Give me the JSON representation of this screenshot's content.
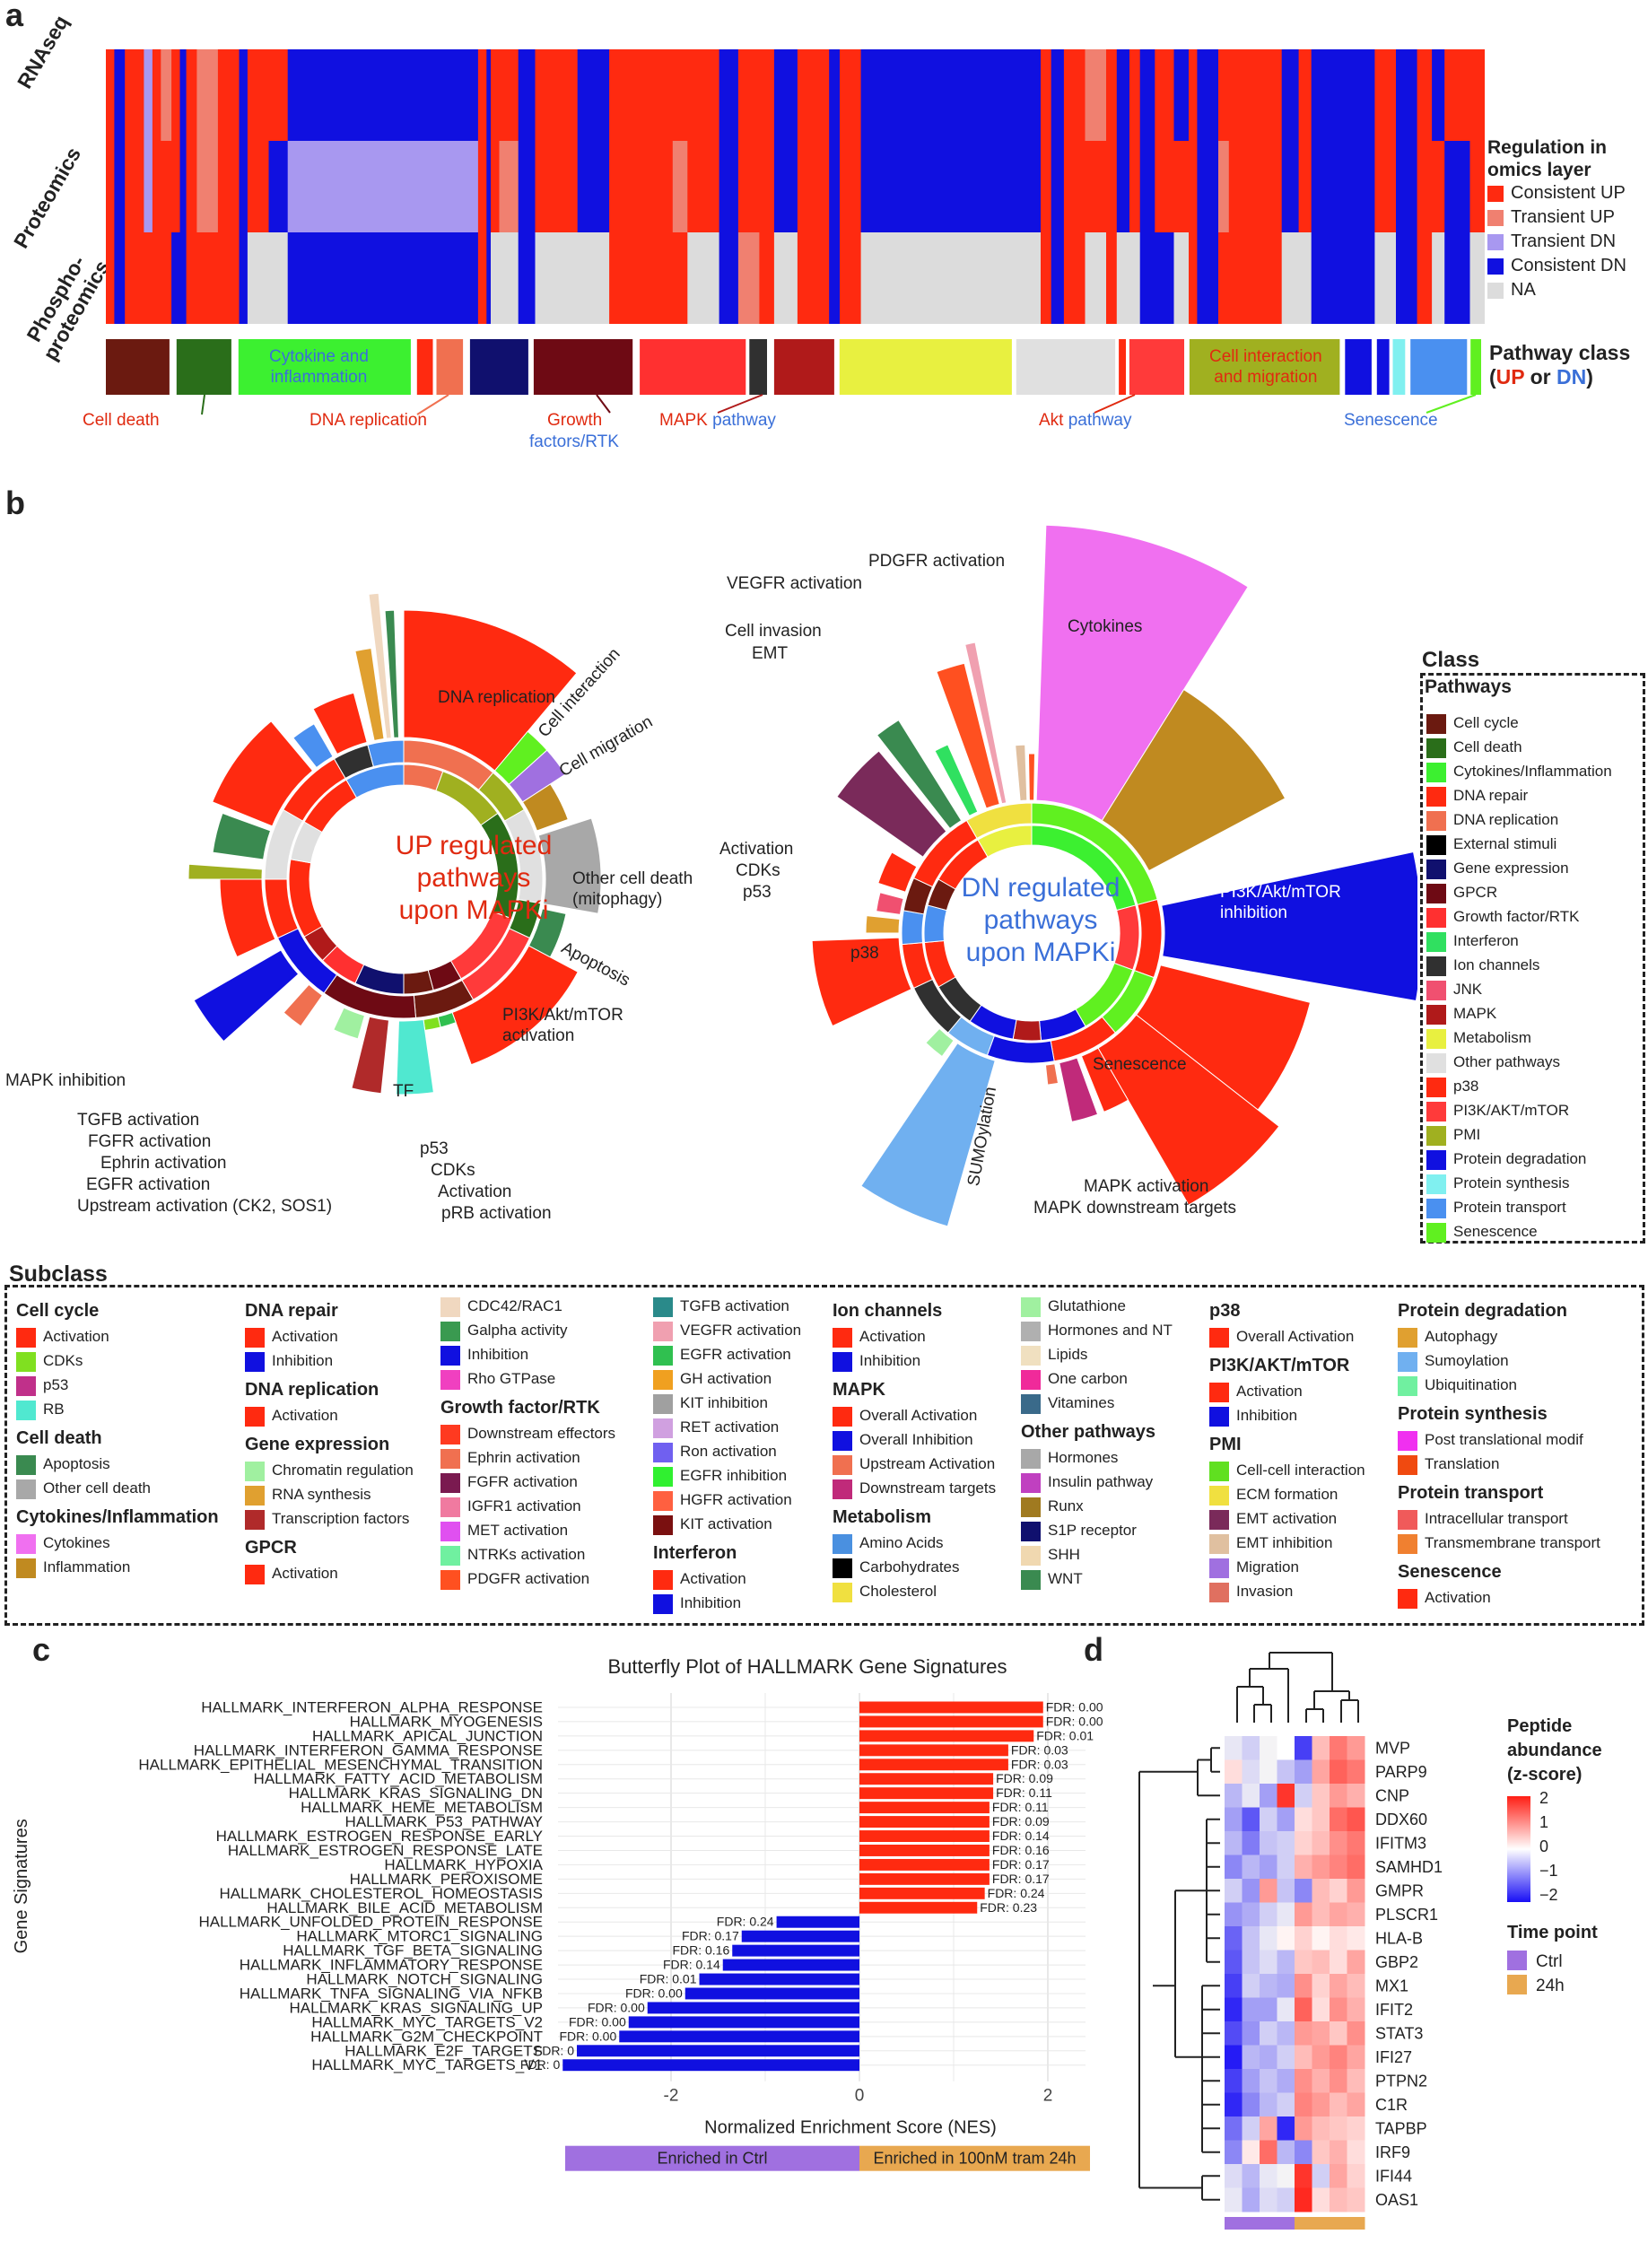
{
  "panel_a": {
    "letter": "a",
    "row_labels": [
      "RNAseq",
      "Proteomics",
      "Phospho-\nproteomics"
    ],
    "regulation_legend": {
      "title": "Regulation in\nomics layer",
      "items": [
        {
          "label": "Consistent UP",
          "color": "#ff2a10"
        },
        {
          "label": "Transient UP",
          "color": "#f08070"
        },
        {
          "label": "Transient DN",
          "color": "#a898f0"
        },
        {
          "label": "Consistent DN",
          "color": "#1010e0"
        },
        {
          "label": "NA",
          "color": "#dcdcdc"
        }
      ]
    },
    "pathway_class_title": "Pathway class",
    "pathway_class_sub": [
      "(",
      "UP",
      " or ",
      "DN",
      ")"
    ],
    "class_labels_inside": [
      {
        "text": "Cytokine and\ninflammation",
        "color": "#3a6fd8"
      },
      {
        "text": "Cell interaction\nand migration",
        "color": "#e02a10"
      }
    ],
    "class_labels_below": [
      {
        "parts": [
          {
            "t": "Cell death",
            "c": "#e02a10"
          }
        ]
      },
      {
        "parts": [
          {
            "t": "DNA replication",
            "c": "#e02a10"
          }
        ]
      },
      {
        "parts": [
          {
            "t": "Growth",
            "c": "#e02a10"
          }
        ]
      },
      {
        "parts": [
          {
            "t": "factors/RTK",
            "c": "#3a6fd8"
          }
        ]
      },
      {
        "parts": [
          {
            "t": "MAPK ",
            "c": "#e02a10"
          },
          {
            "t": "pathway",
            "c": "#3a6fd8"
          }
        ]
      },
      {
        "parts": [
          {
            "t": "Akt ",
            "c": "#e02a10"
          },
          {
            "t": "pathway",
            "c": "#3a6fd8"
          }
        ]
      },
      {
        "parts": [
          {
            "t": "Senescence",
            "c": "#3a6fd8"
          }
        ]
      }
    ]
  },
  "panel_b": {
    "letter": "b",
    "up_title": "UP regulated\npathways\nupon MAPKi",
    "dn_title": "DN regulated\npathways\nupon MAPKi",
    "up_labels": [
      "DNA replication",
      "Cell interaction",
      "Cell migration",
      "Other cell death\n(mitophagy)",
      "Apoptosis",
      "PI3K/Akt/mTOR\nactivation",
      "TF",
      "MAPK inhibition",
      "TGFB activation",
      "FGFR activation",
      "Ephrin activation",
      "EGFR activation",
      "Upstream activation (CK2, SOS1)",
      "p53",
      "CDKs",
      "Activation",
      "pRB activation"
    ],
    "dn_labels": [
      "Cytokines",
      "PDGFR activation",
      "VEGFR activation",
      "Cell invasion",
      "EMT",
      "Activation",
      "CDKs",
      "p53",
      "p38",
      "PI3K/Akt/mTOR\ninhibition",
      "Senescence",
      "SUMOylation",
      "MAPK activation",
      "MAPK downstream targets"
    ],
    "class_legend": {
      "title": "Class",
      "subtitle": "Pathways",
      "items": [
        {
          "label": "Cell cycle",
          "color": "#6b1a10"
        },
        {
          "label": "Cell death",
          "color": "#2a6e1a"
        },
        {
          "label": "Cytokines/Inflammation",
          "color": "#3cf030"
        },
        {
          "label": "DNA repair",
          "color": "#ff2a10"
        },
        {
          "label": "DNA replication",
          "color": "#f07050"
        },
        {
          "label": "External stimuli",
          "color": "#000000"
        },
        {
          "label": "Gene expression",
          "color": "#10106e"
        },
        {
          "label": "GPCR",
          "color": "#6e0a14"
        },
        {
          "label": "Growth factor/RTK",
          "color": "#ff3030"
        },
        {
          "label": "Interferon",
          "color": "#30e060"
        },
        {
          "label": "Ion channels",
          "color": "#303030"
        },
        {
          "label": "JNK",
          "color": "#f05070"
        },
        {
          "label": "MAPK",
          "color": "#b01a1a"
        },
        {
          "label": "Metabolism",
          "color": "#e8f040"
        },
        {
          "label": "Other pathways",
          "color": "#e0e0e0"
        },
        {
          "label": "p38",
          "color": "#ff2a10"
        },
        {
          "label": "PI3K/AKT/mTOR",
          "color": "#ff3a3a"
        },
        {
          "label": "PMI",
          "color": "#a0b020"
        },
        {
          "label": "Protein degradation",
          "color": "#1010e0"
        },
        {
          "label": "Protein synthesis",
          "color": "#80f0f0"
        },
        {
          "label": "Protein transport",
          "color": "#4a90f0"
        },
        {
          "label": "Senescence",
          "color": "#60f020"
        }
      ]
    }
  },
  "subclass": {
    "title": "Subclass",
    "columns": [
      [
        {
          "h": "Cell cycle"
        },
        {
          "l": "Activation",
          "c": "#ff2a10"
        },
        {
          "l": "CDKs",
          "c": "#80e020"
        },
        {
          "l": "p53",
          "c": "#c0308a"
        },
        {
          "l": "RB",
          "c": "#50e8d0"
        },
        {
          "h": "Cell death"
        },
        {
          "l": "Apoptosis",
          "c": "#3a8a50"
        },
        {
          "l": "Other cell death",
          "c": "#a8a8a8"
        },
        {
          "h": "Cytokines/Inflammation"
        },
        {
          "l": "Cytokines",
          "c": "#f070f0"
        },
        {
          "l": "Inflammation",
          "c": "#c08a20"
        }
      ],
      [
        {
          "h": "DNA repair"
        },
        {
          "l": "Activation",
          "c": "#ff2a10"
        },
        {
          "l": "Inhibition",
          "c": "#1010e0"
        },
        {
          "h": "DNA replication"
        },
        {
          "l": "Activation",
          "c": "#ff2a10"
        },
        {
          "h": "Gene expression"
        },
        {
          "l": "Chromatin regulation",
          "c": "#a0f0a0"
        },
        {
          "l": "RNA synthesis",
          "c": "#e0a030"
        },
        {
          "l": "Transcription factors",
          "c": "#b02a2a"
        },
        {
          "h": "GPCR"
        },
        {
          "l": "Activation",
          "c": "#ff2a10"
        }
      ],
      [
        {
          "l": "CDC42/RAC1",
          "c": "#f0d8c0"
        },
        {
          "l": "Galpha activity",
          "c": "#3a9a50"
        },
        {
          "l": "Inhibition",
          "c": "#1010e0"
        },
        {
          "l": "Rho GTPase",
          "c": "#f040c0"
        },
        {
          "h": "Growth factor/RTK"
        },
        {
          "l": "Downstream effectors",
          "c": "#ff3a20"
        },
        {
          "l": "Ephrin activation",
          "c": "#f07050"
        },
        {
          "l": "FGFR activation",
          "c": "#7a1a50"
        },
        {
          "l": "IGFR1 activation",
          "c": "#f07aa0"
        },
        {
          "l": "MET activation",
          "c": "#e050f0"
        },
        {
          "l": "NTRKs activation",
          "c": "#70f0a0"
        },
        {
          "l": "PDGFR activation",
          "c": "#ff5020"
        }
      ],
      [
        {
          "l": "TGFB activation",
          "c": "#2a8a8a"
        },
        {
          "l": "VEGFR activation",
          "c": "#f0a0b0"
        },
        {
          "l": "EGFR activation",
          "c": "#30c050"
        },
        {
          "l": "GH activation",
          "c": "#f0a020"
        },
        {
          "l": "KIT inhibition",
          "c": "#a0a0a0"
        },
        {
          "l": "RET activation",
          "c": "#d0a0e0"
        },
        {
          "l": "Ron activation",
          "c": "#7060f0"
        },
        {
          "l": "EGFR inhibition",
          "c": "#30f030"
        },
        {
          "l": "HGFR activation",
          "c": "#ff6040"
        },
        {
          "l": "KIT activation",
          "c": "#7a1010"
        },
        {
          "h": "Interferon"
        },
        {
          "l": "Activation",
          "c": "#ff2a10"
        },
        {
          "l": "Inhibition",
          "c": "#1010e0"
        }
      ],
      [
        {
          "h": "Ion channels"
        },
        {
          "l": "Activation",
          "c": "#ff2a10"
        },
        {
          "l": "Inhibition",
          "c": "#1010e0"
        },
        {
          "h": "MAPK"
        },
        {
          "l": "Overall Activation",
          "c": "#ff2a10"
        },
        {
          "l": "Overall Inhibition",
          "c": "#1010e0"
        },
        {
          "l": "Upstream Activation",
          "c": "#f07050"
        },
        {
          "l": "Downstream targets",
          "c": "#c02a7a"
        },
        {
          "h": "Metabolism"
        },
        {
          "l": "Amino Acids",
          "c": "#4a90e0"
        },
        {
          "l": "Carbohydrates",
          "c": "#000000"
        },
        {
          "l": "Cholesterol",
          "c": "#f0e040"
        }
      ],
      [
        {
          "l": "Glutathione",
          "c": "#a0f0a0"
        },
        {
          "l": "Hormones and NT",
          "c": "#b0b0b0"
        },
        {
          "l": "Lipids",
          "c": "#f0e0c0"
        },
        {
          "l": "One carbon",
          "c": "#f02a9a"
        },
        {
          "l": "Vitamines",
          "c": "#3a6a8a"
        },
        {
          "h": "Other pathways"
        },
        {
          "l": "Hormones",
          "c": "#a8a8a8"
        },
        {
          "l": "Insulin pathway",
          "c": "#c040c0"
        },
        {
          "l": "Runx",
          "c": "#a07a20"
        },
        {
          "l": "S1P receptor",
          "c": "#10106e"
        },
        {
          "l": "SHH",
          "c": "#f0d8b0"
        },
        {
          "l": "WNT",
          "c": "#3a8a50"
        }
      ],
      [
        {
          "h": "p38"
        },
        {
          "l": "Overall Activation",
          "c": "#ff2a10"
        },
        {
          "h": "PI3K/AKT/mTOR"
        },
        {
          "l": "Activation",
          "c": "#ff2a10"
        },
        {
          "l": "Inhibition",
          "c": "#1010e0"
        },
        {
          "h": "PMI"
        },
        {
          "l": "Cell-cell interaction",
          "c": "#60e020"
        },
        {
          "l": "ECM formation",
          "c": "#f0e040"
        },
        {
          "l": "EMT activation",
          "c": "#7a2a5a"
        },
        {
          "l": "EMT inhibition",
          "c": "#e0c0a0"
        },
        {
          "l": "Migration",
          "c": "#a070e0"
        },
        {
          "l": "Invasion",
          "c": "#e07060"
        }
      ],
      [
        {
          "h": "Protein degradation"
        },
        {
          "l": "Autophagy",
          "c": "#e0a030"
        },
        {
          "l": "Sumoylation",
          "c": "#70b0f0"
        },
        {
          "l": "Ubiquitination",
          "c": "#70f0a0"
        },
        {
          "h": "Protein synthesis"
        },
        {
          "l": "Post translational modif",
          "c": "#f030f0"
        },
        {
          "l": "Translation",
          "c": "#f04a10"
        },
        {
          "h": "Protein transport"
        },
        {
          "l": "Intracellular transport",
          "c": "#f05a5a"
        },
        {
          "l": "Transmembrane transport",
          "c": "#f08030"
        },
        {
          "h": "Senescence"
        },
        {
          "l": "Activation",
          "c": "#ff2a10"
        }
      ]
    ]
  },
  "chart_data": [
    {
      "type": "bar",
      "orientation": "horizontal",
      "title": "Butterfly Plot of HALLMARK Gene Signatures",
      "xlabel": "Normalized Enrichment Score (NES)",
      "ylabel": "Gene Signatures",
      "xticks": [
        "-2",
        "0",
        "2"
      ],
      "xlim": [
        -3.2,
        2.4
      ],
      "bottom_labels": [
        "Enriched in Ctrl",
        "Enriched in 100nM tram 24h"
      ],
      "up_color": "#ff2a10",
      "down_color": "#1010e0",
      "categories": [
        "HALLMARK_INTERFERON_ALPHA_RESPONSE",
        "HALLMARK_MYOGENESIS",
        "HALLMARK_APICAL_JUNCTION",
        "HALLMARK_INTERFERON_GAMMA_RESPONSE",
        "HALLMARK_EPITHELIAL_MESENCHYMAL_TRANSITION",
        "HALLMARK_FATTY_ACID_METABOLISM",
        "HALLMARK_KRAS_SIGNALING_DN",
        "HALLMARK_HEME_METABOLISM",
        "HALLMARK_P53_PATHWAY",
        "HALLMARK_ESTROGEN_RESPONSE_EARLY",
        "HALLMARK_ESTROGEN_RESPONSE_LATE",
        "HALLMARK_HYPOXIA",
        "HALLMARK_PEROXISOME",
        "HALLMARK_CHOLESTEROL_HOMEOSTASIS",
        "HALLMARK_BILE_ACID_METABOLISM",
        "HALLMARK_UNFOLDED_PROTEIN_RESPONSE",
        "HALLMARK_MTORC1_SIGNALING",
        "HALLMARK_TGF_BETA_SIGNALING",
        "HALLMARK_INFLAMMATORY_RESPONSE",
        "HALLMARK_NOTCH_SIGNALING",
        "HALLMARK_TNFA_SIGNALING_VIA_NFKB",
        "HALLMARK_KRAS_SIGNALING_UP",
        "HALLMARK_MYC_TARGETS_V2",
        "HALLMARK_G2M_CHECKPOINT",
        "HALLMARK_E2F_TARGETS",
        "HALLMARK_MYC_TARGETS_V1"
      ],
      "values": [
        1.95,
        1.95,
        1.85,
        1.58,
        1.58,
        1.42,
        1.42,
        1.38,
        1.38,
        1.38,
        1.38,
        1.38,
        1.38,
        1.33,
        1.25,
        -0.88,
        -1.25,
        -1.35,
        -1.45,
        -1.7,
        -1.85,
        -2.25,
        -2.45,
        -2.55,
        -3.0,
        -3.15
      ],
      "fdr_labels": [
        "FDR: 0.00",
        "FDR: 0.00",
        "FDR: 0.01",
        "FDR: 0.03",
        "FDR: 0.03",
        "FDR: 0.09",
        "FDR: 0.11",
        "FDR: 0.11",
        "FDR: 0.09",
        "FDR: 0.14",
        "FDR: 0.16",
        "FDR: 0.17",
        "FDR: 0.17",
        "FDR: 0.24",
        "FDR: 0.23",
        "FDR: 0.24",
        "FDR: 0.17",
        "FDR: 0.16",
        "FDR: 0.14",
        "FDR: 0.01",
        "FDR: 0.00",
        "FDR: 0.00",
        "FDR: 0.00",
        "FDR: 0.00",
        "FDR: 0",
        "FDR: 0"
      ]
    },
    {
      "type": "heatmap",
      "rows": [
        "MVP",
        "PARP9",
        "CNP",
        "DDX60",
        "IFITM3",
        "SAMHD1",
        "GMPR",
        "PLSCR1",
        "HLA-B",
        "GBP2",
        "MX1",
        "IFIT2",
        "STAT3",
        "IFI27",
        "PTPN2",
        "C1R",
        "TAPBP",
        "IRF9",
        "IFI44",
        "OAS1"
      ],
      "columns_groups": [
        "Ctrl",
        "Ctrl",
        "Ctrl",
        "Ctrl",
        "24h",
        "24h",
        "24h",
        "24h"
      ],
      "values": [
        [
          -0.2,
          -0.4,
          -0.1,
          0.0,
          -1.6,
          0.6,
          1.2,
          0.9
        ],
        [
          0.3,
          -0.3,
          -0.1,
          -0.5,
          -0.8,
          0.8,
          1.4,
          1.2
        ],
        [
          -0.6,
          -0.2,
          -0.8,
          1.8,
          -0.4,
          0.5,
          0.9,
          0.7
        ],
        [
          -0.8,
          -1.4,
          -0.4,
          -0.8,
          0.3,
          0.5,
          1.3,
          1.5
        ],
        [
          -0.6,
          -1.1,
          -0.5,
          -0.4,
          0.4,
          0.6,
          1.0,
          1.2
        ],
        [
          -1.0,
          -0.6,
          -0.8,
          -0.4,
          0.7,
          0.9,
          1.1,
          1.3
        ],
        [
          -0.4,
          -0.9,
          0.9,
          -0.5,
          -1.0,
          0.6,
          0.4,
          0.9
        ],
        [
          -0.9,
          -0.7,
          -0.4,
          -0.2,
          0.9,
          0.6,
          0.8,
          0.7
        ],
        [
          -1.3,
          -0.5,
          -0.2,
          0.1,
          0.4,
          0.1,
          0.3,
          0.2
        ],
        [
          -1.4,
          -0.5,
          -0.3,
          -0.6,
          0.5,
          0.6,
          0.3,
          0.8
        ],
        [
          -1.6,
          -0.4,
          -0.6,
          -0.7,
          1.0,
          0.4,
          0.8,
          0.6
        ],
        [
          -1.8,
          -0.8,
          -0.8,
          -0.2,
          1.4,
          0.3,
          1.0,
          0.7
        ],
        [
          -1.5,
          -0.9,
          -0.4,
          -0.6,
          0.9,
          0.8,
          0.5,
          1.0
        ],
        [
          -1.9,
          -0.6,
          -0.7,
          -0.4,
          0.6,
          0.9,
          1.1,
          0.8
        ],
        [
          -1.6,
          -0.8,
          -0.5,
          -0.7,
          1.0,
          0.7,
          1.0,
          0.6
        ],
        [
          -1.8,
          -1.0,
          -0.6,
          -0.4,
          1.1,
          0.9,
          0.6,
          0.8
        ],
        [
          -1.2,
          -0.4,
          0.8,
          -1.8,
          0.9,
          0.6,
          0.5,
          0.4
        ],
        [
          -1.0,
          0.2,
          1.3,
          -0.6,
          -1.0,
          0.5,
          0.7,
          0.3
        ],
        [
          -0.3,
          -0.6,
          -0.2,
          -0.1,
          1.8,
          -0.4,
          0.8,
          0.4
        ],
        [
          -0.2,
          -0.7,
          -0.3,
          -0.4,
          1.9,
          0.3,
          0.6,
          0.5
        ]
      ],
      "legend_title": "Peptide\nabundance\n(z-score)",
      "scale_ticks": [
        "2",
        "1",
        "0",
        "−1",
        "−2"
      ],
      "time_title": "Time point",
      "time_items": [
        {
          "label": "Ctrl",
          "color": "#a070e0"
        },
        {
          "label": "24h",
          "color": "#e8a850"
        }
      ]
    }
  ],
  "panel_c_letter": "c",
  "panel_d_letter": "d"
}
